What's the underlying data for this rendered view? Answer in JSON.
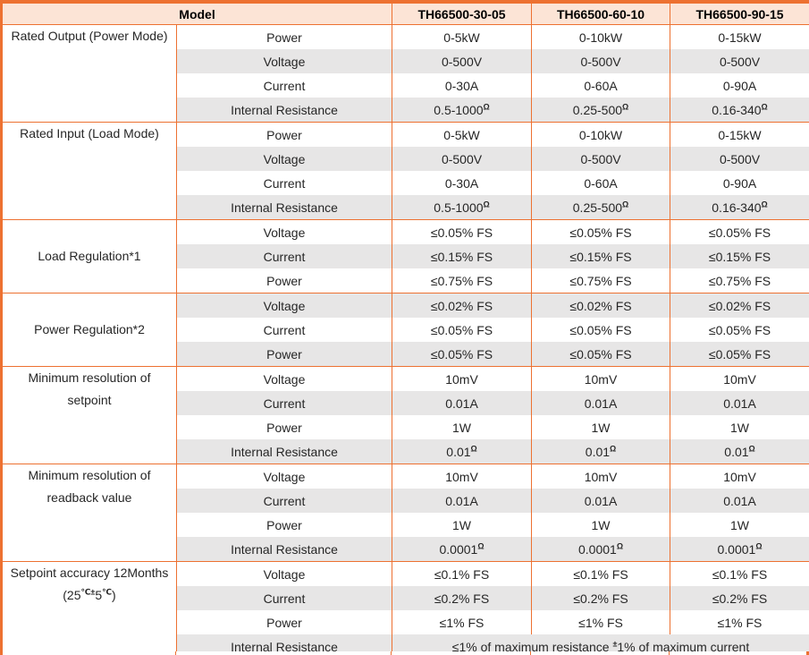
{
  "table": {
    "header": {
      "model_label": "Model",
      "columns": [
        "TH66500-30-05",
        "TH66500-60-10",
        "TH66500-90-15"
      ]
    },
    "groups": [
      {
        "label_lines": [
          "Rated Output (Power Mode)"
        ],
        "valign": "top",
        "rows": [
          {
            "param": "Power",
            "values": [
              "0-5kW",
              "0-10kW",
              "0-15kW"
            ]
          },
          {
            "param": "Voltage",
            "values": [
              "0-500V",
              "0-500V",
              "0-500V"
            ]
          },
          {
            "param": "Current",
            "values": [
              "0-30A",
              "0-60A",
              "0-90A"
            ]
          },
          {
            "param": "Internal Resistance",
            "values": [
              "0.5-1000^Ω",
              "0.25-500^Ω",
              "0.16-340^Ω"
            ]
          }
        ]
      },
      {
        "label_lines": [
          "Rated Input (Load Mode)"
        ],
        "valign": "top",
        "rows": [
          {
            "param": "Power",
            "values": [
              "0-5kW",
              "0-10kW",
              "0-15kW"
            ]
          },
          {
            "param": "Voltage",
            "values": [
              "0-500V",
              "0-500V",
              "0-500V"
            ]
          },
          {
            "param": "Current",
            "values": [
              "0-30A",
              "0-60A",
              "0-90A"
            ]
          },
          {
            "param": "Internal Resistance",
            "values": [
              "0.5-1000^Ω",
              "0.25-500^Ω",
              "0.16-340^Ω"
            ]
          }
        ]
      },
      {
        "label_lines": [
          "Load Regulation*1"
        ],
        "valign": "middle",
        "rows": [
          {
            "param": "Voltage",
            "values": [
              "≤0.05% FS",
              "≤0.05% FS",
              "≤0.05% FS"
            ]
          },
          {
            "param": "Current",
            "values": [
              "≤0.15% FS",
              "≤0.15% FS",
              "≤0.15% FS"
            ]
          },
          {
            "param": "Power",
            "values": [
              "≤0.75% FS",
              "≤0.75% FS",
              "≤0.75% FS"
            ]
          }
        ]
      },
      {
        "label_lines": [
          "Power Regulation*2"
        ],
        "valign": "middle",
        "rows": [
          {
            "param": "Voltage",
            "values": [
              "≤0.02% FS",
              "≤0.02% FS",
              "≤0.02% FS"
            ]
          },
          {
            "param": "Current",
            "values": [
              "≤0.05% FS",
              "≤0.05% FS",
              "≤0.05% FS"
            ]
          },
          {
            "param": "Power",
            "values": [
              "≤0.05% FS",
              "≤0.05% FS",
              "≤0.05% FS"
            ]
          }
        ]
      },
      {
        "label_lines": [
          "Minimum resolution of",
          "setpoint"
        ],
        "valign": "top",
        "rows": [
          {
            "param": "Voltage",
            "values": [
              "10mV",
              "10mV",
              "10mV"
            ]
          },
          {
            "param": "Current",
            "values": [
              "0.01A",
              "0.01A",
              "0.01A"
            ]
          },
          {
            "param": "Power",
            "values": [
              "1W",
              "1W",
              "1W"
            ]
          },
          {
            "param": "Internal Resistance",
            "values": [
              "0.01^Ω",
              "0.01^Ω",
              "0.01^Ω"
            ]
          }
        ]
      },
      {
        "label_lines": [
          "Minimum resolution of",
          "readback value"
        ],
        "valign": "top",
        "rows": [
          {
            "param": "Voltage",
            "values": [
              "10mV",
              "10mV",
              "10mV"
            ]
          },
          {
            "param": "Current",
            "values": [
              "0.01A",
              "0.01A",
              "0.01A"
            ]
          },
          {
            "param": "Power",
            "values": [
              "1W",
              "1W",
              "1W"
            ]
          },
          {
            "param": "Internal Resistance",
            "values": [
              "0.0001^Ω",
              "0.0001^Ω",
              "0.0001^Ω"
            ]
          }
        ]
      },
      {
        "label_lines": [
          "Setpoint accuracy 12Months",
          "(25^℃±^5^℃^)"
        ],
        "valign": "top",
        "rows": [
          {
            "param": "Voltage",
            "values": [
              "≤0.1% FS",
              "≤0.1% FS",
              "≤0.1% FS"
            ]
          },
          {
            "param": "Current",
            "values": [
              "≤0.2% FS",
              "≤0.2% FS",
              "≤0.2% FS"
            ]
          },
          {
            "param": "Power",
            "values": [
              "≤1% FS",
              "≤1% FS",
              "≤1% FS"
            ]
          },
          {
            "param": "Internal Resistance",
            "merged_value": "≤1% of maximum resistance ^±^1% of maximum current"
          }
        ]
      }
    ],
    "colors": {
      "border_orange": "#ED7131",
      "header_bg": "#FCE4D6",
      "band_gray": "#E7E6E6",
      "text": "#262626"
    }
  }
}
